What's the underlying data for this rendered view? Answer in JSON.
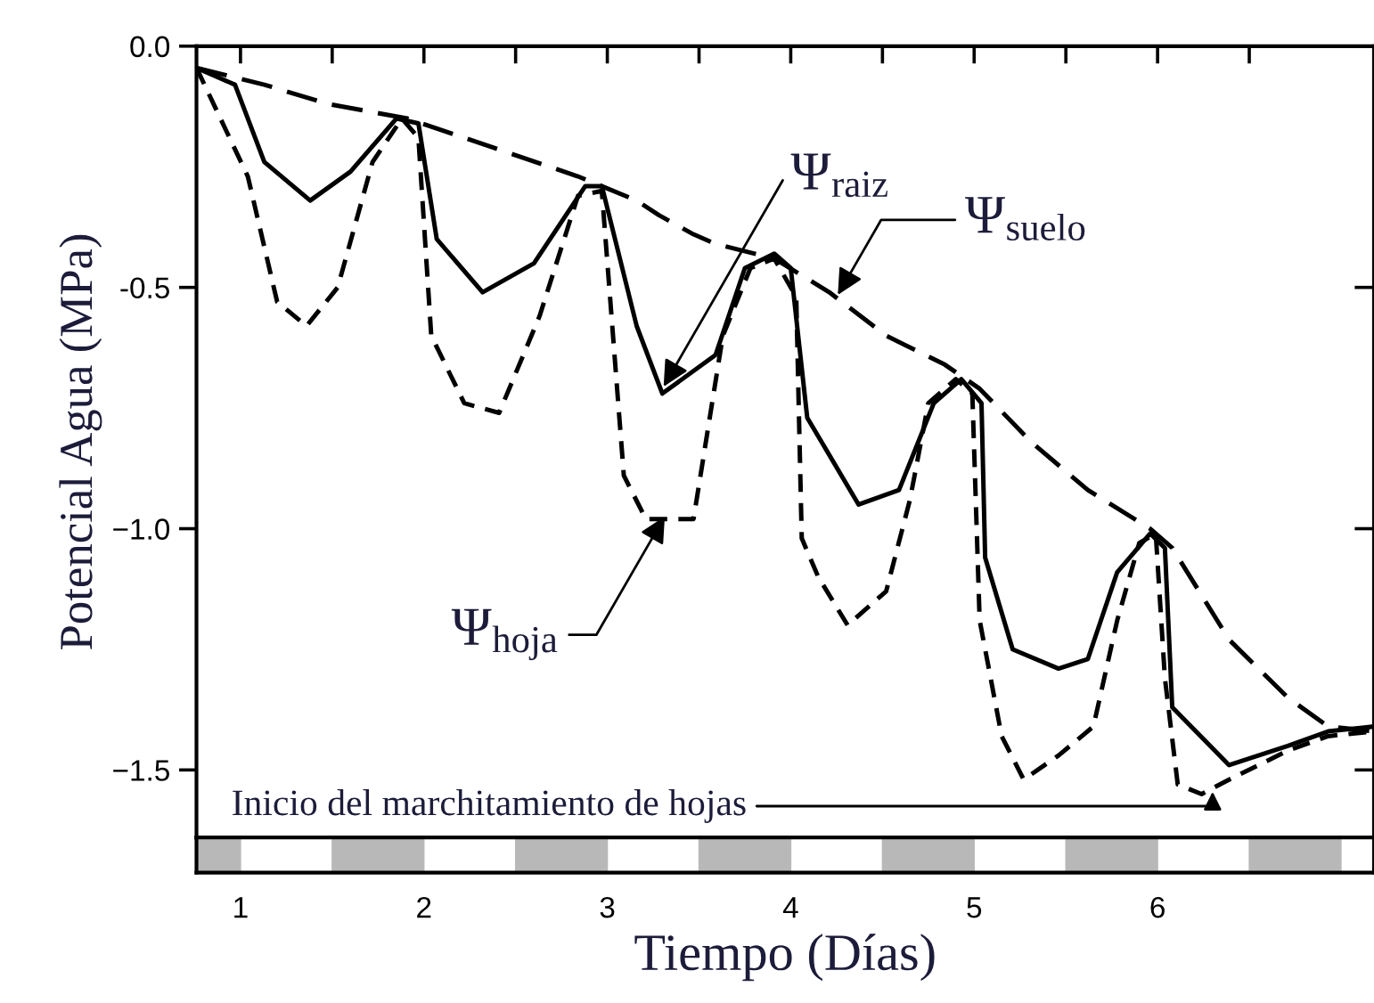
{
  "chart_data": {
    "type": "line",
    "xlabel": "Tiempo (Días)",
    "ylabel": "Potencial Agua (MPa)",
    "xlim": [
      0.76,
      7.18
    ],
    "ylim": [
      -1.64,
      0.0
    ],
    "xticks": [
      {
        "value": 1,
        "label": "1"
      },
      {
        "value": 1.5,
        "label": null
      },
      {
        "value": 2,
        "label": "2"
      },
      {
        "value": 2.5,
        "label": null
      },
      {
        "value": 3,
        "label": "3"
      },
      {
        "value": 3.5,
        "label": null
      },
      {
        "value": 4,
        "label": "4"
      },
      {
        "value": 4.5,
        "label": null
      },
      {
        "value": 5,
        "label": "5"
      },
      {
        "value": 5.5,
        "label": null
      },
      {
        "value": 6,
        "label": "6"
      },
      {
        "value": 6.5,
        "label": null
      }
    ],
    "yticks": [
      {
        "value": 0.0,
        "label": "0.0"
      },
      {
        "value": -0.5,
        "label": "-0.5"
      },
      {
        "value": -1.0,
        "label": "−1.0"
      },
      {
        "value": -1.5,
        "label": "−1.5"
      }
    ],
    "grid": false,
    "legend": false,
    "marker": "none",
    "series": [
      {
        "color": "#000000",
        "line_style": "dashed",
        "x": [
          0.76,
          1.13,
          1.48,
          1.91,
          2.22,
          2.53,
          2.84,
          3.16,
          3.28,
          3.47,
          3.59,
          3.91,
          4.21,
          4.52,
          4.84,
          5.03,
          5.31,
          5.62,
          5.96,
          6.08,
          6.39,
          6.71,
          6.93,
          7.18
        ],
        "values": [
          -0.045,
          -0.08,
          -0.12,
          -0.15,
          -0.19,
          -0.23,
          -0.27,
          -0.32,
          -0.35,
          -0.39,
          -0.41,
          -0.44,
          -0.51,
          -0.6,
          -0.66,
          -0.71,
          -0.82,
          -0.92,
          -1.0,
          -1.04,
          -1.23,
          -1.35,
          -1.41,
          -1.42
        ]
      },
      {
        "color": "#000000",
        "line_style": "solid",
        "x": [
          0.76,
          0.97,
          1.13,
          1.38,
          1.6,
          1.85,
          1.97,
          2.07,
          2.32,
          2.6,
          2.88,
          2.97,
          3.16,
          3.3,
          3.59,
          3.75,
          3.91,
          4.0,
          4.09,
          4.37,
          4.59,
          4.78,
          4.93,
          5.04,
          5.06,
          5.21,
          5.46,
          5.62,
          5.78,
          5.96,
          6.04,
          6.08,
          6.39,
          6.71,
          6.93,
          7.18
        ],
        "values": [
          -0.045,
          -0.08,
          -0.24,
          -0.32,
          -0.26,
          -0.15,
          -0.16,
          -0.4,
          -0.51,
          -0.45,
          -0.29,
          -0.29,
          -0.58,
          -0.72,
          -0.64,
          -0.46,
          -0.43,
          -0.46,
          -0.77,
          -0.95,
          -0.92,
          -0.74,
          -0.69,
          -0.74,
          -1.06,
          -1.25,
          -1.29,
          -1.27,
          -1.09,
          -1.01,
          -1.04,
          -1.37,
          -1.49,
          -1.45,
          -1.42,
          -1.41
        ]
      },
      {
        "color": "#000000",
        "line_style": "dashed",
        "x": [
          0.76,
          1.04,
          1.2,
          1.36,
          1.53,
          1.72,
          1.88,
          1.97,
          2.04,
          2.22,
          2.41,
          2.63,
          2.84,
          2.97,
          3.09,
          3.21,
          3.47,
          3.63,
          3.78,
          3.91,
          4.03,
          4.06,
          4.15,
          4.31,
          4.52,
          4.65,
          4.75,
          4.9,
          4.99,
          5.03,
          5.15,
          5.27,
          5.46,
          5.65,
          5.78,
          5.9,
          5.99,
          6.04,
          6.11,
          6.24,
          6.39,
          6.71,
          6.93,
          7.18
        ],
        "values": [
          -0.045,
          -0.27,
          -0.53,
          -0.58,
          -0.5,
          -0.24,
          -0.15,
          -0.19,
          -0.6,
          -0.74,
          -0.76,
          -0.56,
          -0.31,
          -0.3,
          -0.89,
          -0.98,
          -0.98,
          -0.6,
          -0.46,
          -0.44,
          -0.52,
          -1.02,
          -1.1,
          -1.2,
          -1.13,
          -0.94,
          -0.74,
          -0.69,
          -0.72,
          -1.19,
          -1.43,
          -1.52,
          -1.47,
          -1.41,
          -1.19,
          -1.03,
          -1.01,
          -1.31,
          -1.53,
          -1.55,
          -1.52,
          -1.46,
          -1.43,
          -1.42
        ]
      }
    ],
    "annotations": [
      {
        "text": "Ψ$_{raiz}$",
        "x": 3.3,
        "y": -0.71
      },
      {
        "text": "Ψ$_{suelo}$",
        "x": 4.25,
        "y": -0.52
      },
      {
        "text": "Ψ$_{hoja}$",
        "x": 3.32,
        "y": -0.97
      },
      {
        "text": "Inicio del marchitamiento de hojas",
        "x": 6.3,
        "y": -1.54
      }
    ]
  }
}
